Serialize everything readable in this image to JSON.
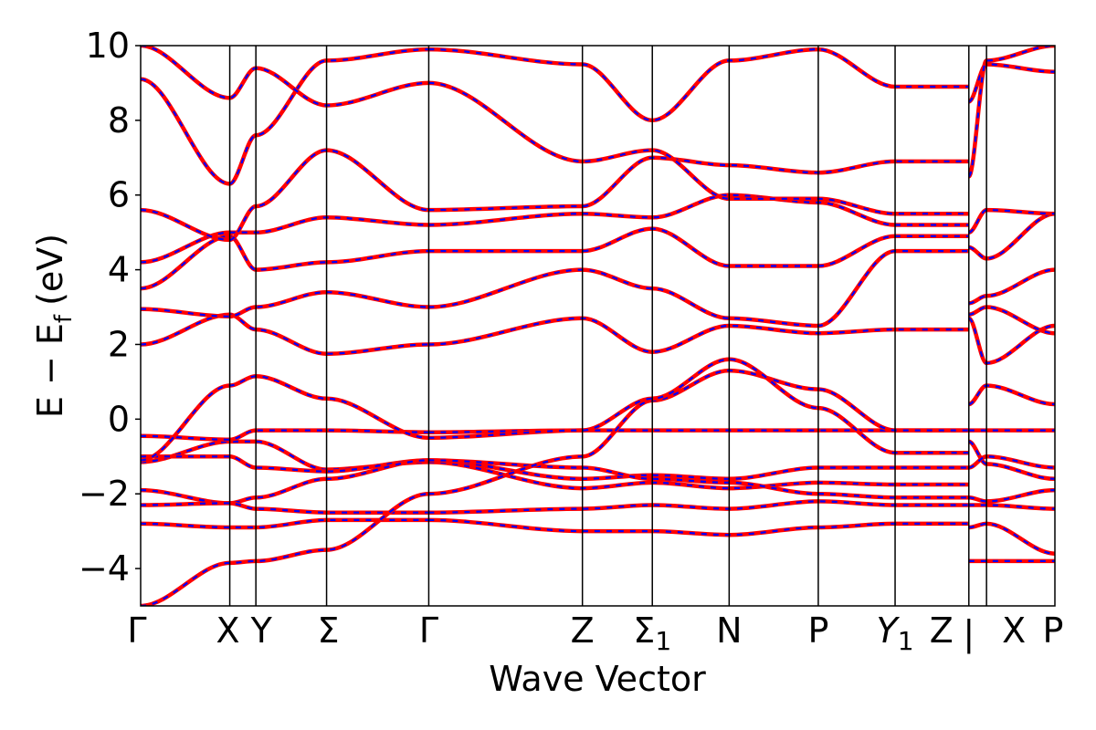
{
  "chart_data": {
    "type": "line",
    "title": "",
    "xlabel": "Wave Vector",
    "ylabel": "E − E_f (eV)",
    "ylabel_parts": {
      "main": "E − E",
      "sub": "f",
      "unit": "(eV)"
    },
    "ylim": [
      -5,
      10
    ],
    "yticks": [
      -4,
      -2,
      0,
      2,
      4,
      6,
      8,
      10
    ],
    "ytick_labels": [
      "−4",
      "−2",
      "0",
      "2",
      "4",
      "6",
      "8",
      "10"
    ],
    "x_range": [
      0,
      11.9
    ],
    "kpoints": [
      {
        "label": "Γ",
        "sub": "",
        "x": 0.0
      },
      {
        "label": "X",
        "sub": "",
        "x": 1.16
      },
      {
        "label": "Y",
        "sub": "",
        "x": 1.5
      },
      {
        "label": "Σ",
        "sub": "",
        "x": 2.42
      },
      {
        "label": "Γ",
        "sub": "",
        "x": 3.75
      },
      {
        "label": "Z",
        "sub": "",
        "x": 5.75
      },
      {
        "label": "Σ",
        "sub": "1",
        "x": 6.66
      },
      {
        "label": "N",
        "sub": "",
        "x": 7.66
      },
      {
        "label": "P",
        "sub": "",
        "x": 8.82
      },
      {
        "label": "Y",
        "sub": "1",
        "x": 9.82
      },
      {
        "label": "Z",
        "sub": "",
        "x": 10.78
      },
      {
        "label": "|",
        "sub": "",
        "x": 10.78,
        "break": true
      },
      {
        "label": "X",
        "sub": "",
        "x": 11.01
      },
      {
        "label": "P",
        "sub": "",
        "x": 11.9
      }
    ],
    "series_style": [
      {
        "color": "#ff0000",
        "dash": "solid"
      },
      {
        "color": "#0000ff",
        "dash": "dashed"
      }
    ],
    "bands": [
      {
        "x": [
          0,
          1.16,
          1.5,
          2.42,
          3.75
        ],
        "y": [
          -1.15,
          -0.6,
          -0.6,
          -1.35,
          -1.15
        ]
      },
      {
        "x": [
          3.75,
          5.75,
          6.66,
          7.66,
          8.82,
          9.82,
          10.78
        ],
        "y": [
          -1.15,
          -1.85,
          -1.7,
          -1.85,
          -1.7,
          -1.75,
          -1.75
        ]
      },
      {
        "x": [
          10.78,
          11.01,
          11.9
        ],
        "y": [
          -0.6,
          -1.2,
          -1.6
        ]
      },
      {
        "x": [
          0,
          1.16,
          1.5,
          2.42,
          3.75
        ],
        "y": [
          -0.45,
          -0.55,
          -0.3,
          -0.3,
          -0.35
        ]
      },
      {
        "x": [
          3.75,
          5.75,
          6.66,
          7.66,
          8.82,
          9.82,
          10.78
        ],
        "y": [
          -0.35,
          -0.3,
          -0.3,
          -0.3,
          -0.3,
          -0.3,
          -0.3
        ]
      },
      {
        "x": [
          10.78,
          11.01,
          11.9
        ],
        "y": [
          -0.3,
          -0.3,
          -0.3
        ]
      },
      {
        "x": [
          0,
          1.16,
          1.5,
          2.42,
          3.75
        ],
        "y": [
          -1.0,
          -1.0,
          -1.3,
          -1.4,
          -1.1
        ]
      },
      {
        "x": [
          3.75,
          5.75,
          6.66,
          7.66,
          8.82,
          9.82,
          10.78
        ],
        "y": [
          -1.1,
          -1.6,
          -1.5,
          -1.6,
          -1.3,
          -1.3,
          -1.3
        ]
      },
      {
        "x": [
          10.78,
          11.01,
          11.9
        ],
        "y": [
          -1.3,
          -1.0,
          -1.3
        ]
      },
      {
        "x": [
          0,
          1.16,
          1.5,
          2.42,
          3.75
        ],
        "y": [
          -1.9,
          -2.25,
          -2.1,
          -1.6,
          -1.1
        ]
      },
      {
        "x": [
          3.75,
          5.75,
          6.66,
          7.66,
          8.82,
          9.82,
          10.78
        ],
        "y": [
          -1.1,
          -1.3,
          -1.6,
          -1.7,
          -2.0,
          -2.1,
          -2.1
        ]
      },
      {
        "x": [
          10.78,
          11.01,
          11.9
        ],
        "y": [
          -2.1,
          -2.2,
          -1.9
        ]
      },
      {
        "x": [
          0,
          1.16,
          1.5,
          2.42,
          3.75
        ],
        "y": [
          -2.3,
          -2.25,
          -2.4,
          -2.5,
          -2.5
        ]
      },
      {
        "x": [
          3.75,
          5.75,
          6.66,
          7.66,
          8.82,
          9.82,
          10.78
        ],
        "y": [
          -2.5,
          -2.4,
          -2.3,
          -2.4,
          -2.2,
          -2.3,
          -2.3
        ]
      },
      {
        "x": [
          10.78,
          11.01,
          11.9
        ],
        "y": [
          -2.3,
          -2.3,
          -2.4
        ]
      },
      {
        "x": [
          0,
          1.16,
          1.5,
          2.42,
          3.75
        ],
        "y": [
          -2.8,
          -2.9,
          -2.9,
          -2.7,
          -2.7
        ]
      },
      {
        "x": [
          3.75,
          5.75,
          6.66,
          7.66,
          8.82,
          9.82,
          10.78
        ],
        "y": [
          -2.7,
          -3.0,
          -3.0,
          -3.1,
          -2.9,
          -2.8,
          -2.8
        ]
      },
      {
        "x": [
          10.78,
          11.01,
          11.9
        ],
        "y": [
          -2.9,
          -2.8,
          -3.6
        ]
      },
      {
        "x": [
          0,
          1.16,
          1.5,
          2.42,
          3.75
        ],
        "y": [
          -5.0,
          -3.85,
          -3.8,
          -3.5,
          -2.0
        ]
      },
      {
        "x": [
          3.75,
          5.75,
          6.66,
          7.66,
          8.82,
          9.82,
          10.78
        ],
        "y": [
          -2.0,
          -1.0,
          0.5,
          1.3,
          0.8,
          -0.3,
          -0.3
        ]
      },
      {
        "x": [
          10.78,
          11.01,
          11.9
        ],
        "y": [
          -3.8,
          -3.8,
          -3.8
        ]
      },
      {
        "x": [
          0,
          1.16,
          1.5,
          2.42,
          3.75
        ],
        "y": [
          -1.1,
          0.9,
          1.15,
          0.55,
          -0.5
        ]
      },
      {
        "x": [
          3.75,
          5.75,
          6.66,
          7.66,
          8.82,
          9.82,
          10.78
        ],
        "y": [
          -0.5,
          -0.3,
          0.55,
          1.6,
          0.3,
          -0.9,
          -0.9
        ]
      },
      {
        "x": [
          10.78,
          11.01,
          11.9
        ],
        "y": [
          0.4,
          0.9,
          0.4
        ]
      },
      {
        "x": [
          0,
          1.16,
          1.5,
          2.42,
          3.75
        ],
        "y": [
          2.0,
          2.8,
          2.4,
          1.75,
          2.0
        ]
      },
      {
        "x": [
          3.75,
          5.75,
          6.66,
          7.66,
          8.82,
          9.82,
          10.78
        ],
        "y": [
          2.0,
          2.7,
          1.8,
          2.5,
          2.3,
          2.4,
          2.4
        ]
      },
      {
        "x": [
          10.78,
          11.01,
          11.9
        ],
        "y": [
          2.7,
          1.5,
          2.5
        ]
      },
      {
        "x": [
          0,
          1.16,
          1.5,
          2.42,
          3.75
        ],
        "y": [
          2.95,
          2.75,
          3.0,
          3.4,
          3.0
        ]
      },
      {
        "x": [
          3.75,
          5.75,
          6.66,
          7.66,
          8.82,
          9.82,
          10.78
        ],
        "y": [
          3.0,
          4.0,
          3.5,
          2.7,
          2.5,
          4.5,
          4.5
        ]
      },
      {
        "x": [
          10.78,
          11.01,
          11.9
        ],
        "y": [
          2.8,
          3.0,
          2.3
        ]
      },
      {
        "x": [
          0,
          1.16,
          1.5,
          2.42,
          3.75
        ],
        "y": [
          3.5,
          4.9,
          4.0,
          4.2,
          4.5
        ]
      },
      {
        "x": [
          3.75,
          5.75,
          6.66,
          7.66,
          8.82,
          9.82,
          10.78
        ],
        "y": [
          4.5,
          4.5,
          5.1,
          4.1,
          4.1,
          4.9,
          4.9
        ]
      },
      {
        "x": [
          10.78,
          11.01,
          11.9
        ],
        "y": [
          3.1,
          3.3,
          4.0
        ]
      },
      {
        "x": [
          0,
          1.16,
          1.5,
          2.42,
          3.75
        ],
        "y": [
          4.2,
          5.0,
          5.0,
          5.4,
          5.2
        ]
      },
      {
        "x": [
          3.75,
          5.75,
          6.66,
          7.66,
          8.82,
          9.82,
          10.78
        ],
        "y": [
          5.2,
          5.5,
          5.4,
          6.0,
          5.8,
          5.2,
          5.2
        ]
      },
      {
        "x": [
          10.78,
          11.01,
          11.9
        ],
        "y": [
          4.6,
          4.3,
          5.5
        ]
      },
      {
        "x": [
          0,
          1.16,
          1.5,
          2.42,
          3.75
        ],
        "y": [
          5.6,
          4.8,
          5.7,
          7.2,
          5.6
        ]
      },
      {
        "x": [
          3.75,
          5.75,
          6.66,
          7.66,
          8.82,
          9.82,
          10.78
        ],
        "y": [
          5.6,
          5.7,
          7.0,
          6.8,
          6.6,
          6.9,
          6.9
        ]
      },
      {
        "x": [
          10.78,
          11.01,
          11.9
        ],
        "y": [
          5.0,
          5.6,
          5.5
        ]
      },
      {
        "x": [
          0,
          1.16,
          1.5,
          2.42,
          3.75
        ],
        "y": [
          9.1,
          6.3,
          7.6,
          9.6,
          9.9
        ]
      },
      {
        "x": [
          3.75,
          5.75,
          6.66,
          7.66,
          8.82,
          9.82,
          10.78
        ],
        "y": [
          9.9,
          9.5,
          8.0,
          9.6,
          9.9,
          8.9,
          8.9
        ]
      },
      {
        "x": [
          10.78,
          11.01,
          11.9
        ],
        "y": [
          8.5,
          9.5,
          9.3
        ]
      },
      {
        "x": [
          0,
          1.16,
          1.5,
          2.42,
          3.75
        ],
        "y": [
          10.0,
          8.6,
          9.4,
          8.4,
          9.0
        ]
      },
      {
        "x": [
          3.75,
          5.75,
          6.66,
          7.66,
          8.82,
          9.82,
          10.78
        ],
        "y": [
          9.0,
          6.9,
          7.2,
          5.9,
          5.9,
          5.5,
          5.5
        ]
      },
      {
        "x": [
          10.78,
          11.01,
          11.9
        ],
        "y": [
          6.5,
          9.6,
          10.0
        ]
      }
    ]
  }
}
